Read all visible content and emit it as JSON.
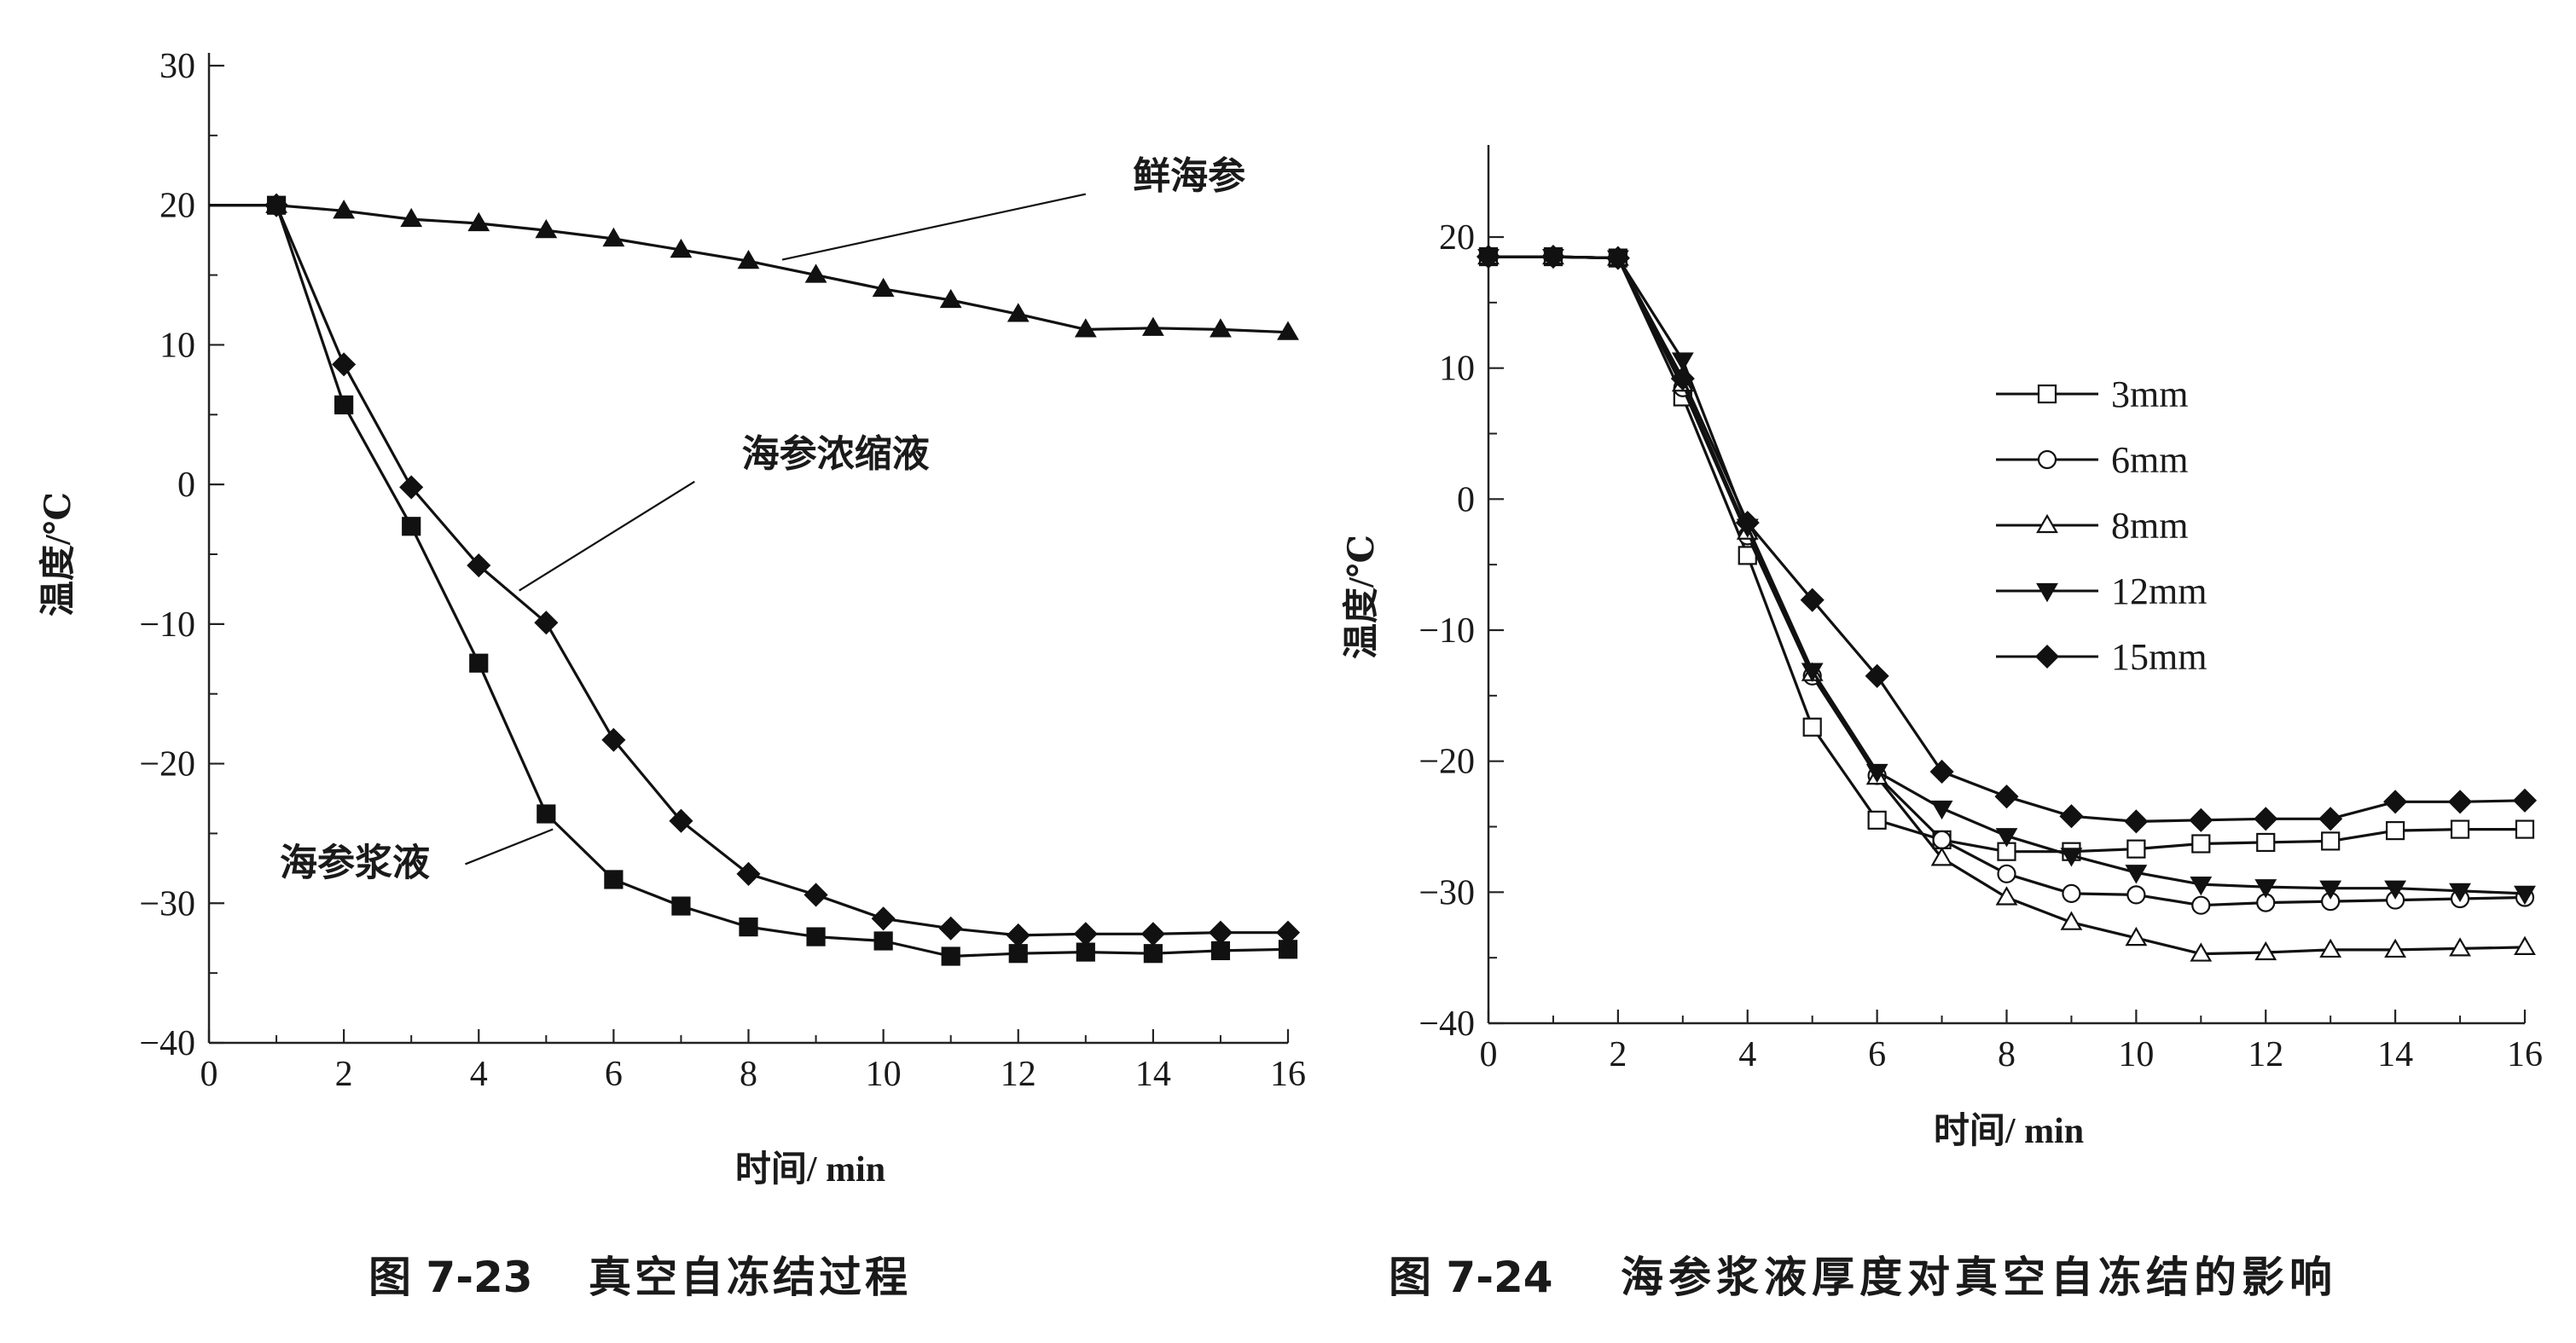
{
  "figures": [
    {
      "caption_num": "图 7-23",
      "caption_text": "真空自冻结过程"
    },
    {
      "caption_num": "图 7-24",
      "caption_text": "海参浆液厚度对真空自冻结的影响"
    }
  ],
  "chart_data": [
    {
      "type": "line",
      "title": "",
      "xlabel": "时间/ min",
      "ylabel": "温度/℃",
      "xlim": [
        0,
        16
      ],
      "ylim": [
        -40,
        30
      ],
      "xticks": [
        0,
        2,
        4,
        6,
        8,
        10,
        12,
        14,
        16
      ],
      "yticks": [
        30,
        20,
        10,
        0,
        -10,
        -20,
        -30,
        -40
      ],
      "grid": false,
      "legend": "none",
      "series": [
        {
          "name": "鲜海参",
          "marker": "triangle-filled",
          "x": [
            0,
            1,
            2,
            3,
            4,
            5,
            6,
            7,
            8,
            9,
            10,
            11,
            12,
            13,
            14,
            15,
            16
          ],
          "y": [
            20,
            20,
            19.6,
            19,
            18.7,
            18.2,
            17.6,
            16.8,
            16,
            15,
            14,
            13.2,
            12.2,
            11.1,
            11.2,
            11.1,
            10.9
          ],
          "marker_from": 1,
          "label_text": "鲜海参",
          "label_at": [
            13.7,
            21.2
          ],
          "leader_from": [
            8.5,
            16.1
          ],
          "leader_to": [
            13.0,
            20.8
          ]
        },
        {
          "name": "海参浓缩液",
          "marker": "diamond-filled",
          "x": [
            0,
            1,
            2,
            3,
            4,
            5,
            6,
            7,
            8,
            9,
            10,
            11,
            12,
            13,
            14,
            15,
            16
          ],
          "y": [
            20,
            20,
            8.6,
            -0.2,
            -5.8,
            -9.9,
            -18.3,
            -24.1,
            -27.9,
            -29.4,
            -31.1,
            -31.8,
            -32.3,
            -32.2,
            -32.2,
            -32.1,
            -32.1
          ],
          "marker_from": 1,
          "label_text": "海参浓缩液",
          "label_at": [
            7.9,
            1.3
          ],
          "leader_from": [
            4.6,
            -7.6
          ],
          "leader_to": [
            7.2,
            0.2
          ]
        },
        {
          "name": "海参浆液",
          "marker": "square-filled",
          "x": [
            0,
            1,
            2,
            3,
            4,
            5,
            6,
            7,
            8,
            9,
            10,
            11,
            12,
            13,
            14,
            15,
            16
          ],
          "y": [
            20,
            20,
            5.7,
            -3,
            -12.8,
            -23.6,
            -28.3,
            -30.2,
            -31.7,
            -32.4,
            -32.7,
            -33.8,
            -33.6,
            -33.5,
            -33.6,
            -33.4,
            -33.3
          ],
          "marker_from": 1,
          "label_text": "海参浆液",
          "label_at": [
            1.05,
            -28.0
          ],
          "leader_from": [
            5.1,
            -24.7
          ],
          "leader_to": [
            3.8,
            -27.2
          ]
        }
      ]
    },
    {
      "type": "line",
      "title": "",
      "xlabel": "时间/ min",
      "ylabel": "温度/℃",
      "xlim": [
        0,
        16
      ],
      "ylim": [
        -40,
        20
      ],
      "xticks": [
        0,
        2,
        4,
        6,
        8,
        10,
        12,
        14,
        16
      ],
      "yticks": [
        20,
        10,
        0,
        -10,
        -20,
        -30,
        -40
      ],
      "grid": false,
      "legend": "top-right",
      "series": [
        {
          "name": "3mm",
          "marker": "square-open",
          "x": [
            0,
            1,
            2,
            3,
            4,
            5,
            6,
            7,
            8,
            9,
            10,
            11,
            12,
            13,
            14,
            15,
            16
          ],
          "y": [
            18.5,
            18.5,
            18.4,
            7.8,
            -4.3,
            -17.4,
            -24.5,
            -26,
            -26.9,
            -26.9,
            -26.7,
            -26.3,
            -26.2,
            -26.1,
            -25.3,
            -25.2,
            -25.2
          ]
        },
        {
          "name": "6mm",
          "marker": "circle-open",
          "x": [
            0,
            1,
            2,
            3,
            4,
            5,
            6,
            7,
            8,
            9,
            10,
            11,
            12,
            13,
            14,
            15,
            16
          ],
          "y": [
            18.5,
            18.5,
            18.4,
            8.5,
            -2.8,
            -13.5,
            -21.1,
            -26,
            -28.6,
            -30.1,
            -30.2,
            -31,
            -30.8,
            -30.7,
            -30.6,
            -30.5,
            -30.4
          ]
        },
        {
          "name": "8mm",
          "marker": "triangle-open",
          "x": [
            0,
            1,
            2,
            3,
            4,
            5,
            6,
            7,
            8,
            9,
            10,
            11,
            12,
            13,
            14,
            15,
            16
          ],
          "y": [
            18.5,
            18.5,
            18.4,
            8.8,
            -2.5,
            -13.3,
            -21.2,
            -27.4,
            -30.4,
            -32.3,
            -33.5,
            -34.7,
            -34.6,
            -34.4,
            -34.4,
            -34.3,
            -34.2
          ]
        },
        {
          "name": "12mm",
          "marker": "triangle-down-filled",
          "x": [
            0,
            1,
            2,
            3,
            4,
            5,
            6,
            7,
            8,
            9,
            10,
            11,
            12,
            13,
            14,
            15,
            16
          ],
          "y": [
            18.5,
            18.5,
            18.4,
            10.6,
            -2.1,
            -13.1,
            -20.8,
            -23.6,
            -25.7,
            -27.2,
            -28.5,
            -29.4,
            -29.6,
            -29.7,
            -29.7,
            -29.9,
            -30.1
          ]
        },
        {
          "name": "15mm",
          "marker": "diamond-filled",
          "x": [
            0,
            1,
            2,
            3,
            4,
            5,
            6,
            7,
            8,
            9,
            10,
            11,
            12,
            13,
            14,
            15,
            16
          ],
          "y": [
            18.5,
            18.5,
            18.4,
            9.2,
            -1.8,
            -7.7,
            -13.5,
            -20.8,
            -22.7,
            -24.2,
            -24.6,
            -24.5,
            -24.4,
            -24.4,
            -23.1,
            -23.1,
            -23.0
          ]
        }
      ]
    }
  ]
}
